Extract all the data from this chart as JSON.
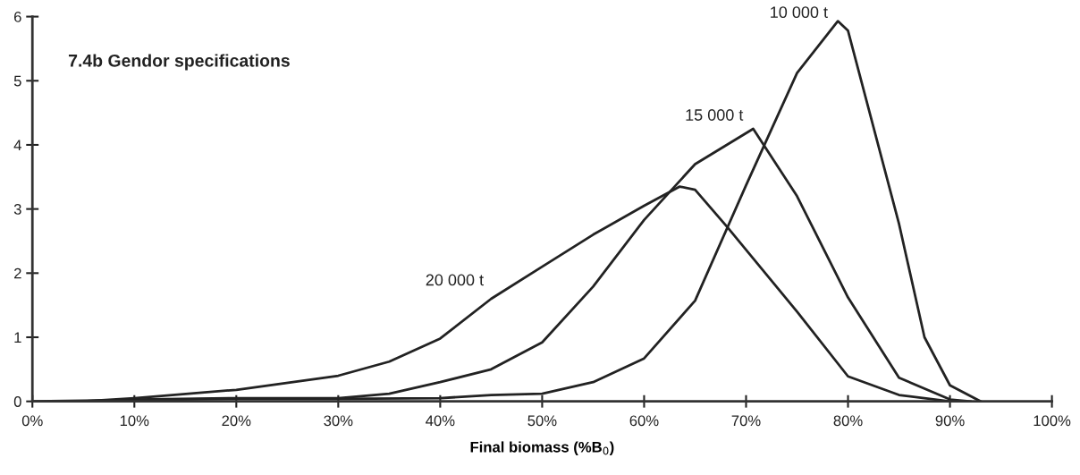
{
  "chart_data": {
    "type": "line",
    "title": "7.4b Gendor specifications",
    "xlabel": "Final biomass (%B$_{0}$)",
    "series": [
      {
        "name": "10 000 t",
        "color": "#222222",
        "x": [
          0,
          10,
          20,
          30,
          40,
          45,
          50,
          55,
          60,
          65,
          70,
          75,
          79,
          80,
          85,
          87.5,
          90,
          93
        ],
        "values": [
          0,
          0.02,
          0.04,
          0.04,
          0.05,
          0.1,
          0.12,
          0.3,
          0.67,
          1.57,
          3.37,
          5.12,
          5.93,
          5.78,
          2.77,
          1.0,
          0.25,
          0
        ]
      },
      {
        "name": "15 000 t",
        "color": "#222222",
        "x": [
          10,
          20,
          30,
          35,
          40,
          45,
          50,
          55,
          60,
          65,
          70.7,
          75,
          80,
          85,
          90,
          92
        ],
        "values": [
          0.03,
          0.05,
          0.05,
          0.12,
          0.3,
          0.5,
          0.92,
          1.79,
          2.83,
          3.7,
          4.25,
          3.2,
          1.62,
          0.37,
          0.03,
          0
        ]
      },
      {
        "name": "20 000 t",
        "color": "#222222",
        "x": [
          5,
          10,
          20,
          30,
          35,
          40,
          45,
          50,
          55,
          60,
          63.5,
          65,
          68.2,
          75,
          80,
          85,
          90
        ],
        "values": [
          0,
          0.05,
          0.18,
          0.4,
          0.62,
          0.98,
          1.6,
          2.1,
          2.6,
          3.05,
          3.35,
          3.3,
          2.71,
          1.4,
          0.39,
          0.1,
          0
        ]
      }
    ],
    "xlim": [
      0,
      100
    ],
    "ylim": [
      0,
      6
    ],
    "xticks": [
      {
        "value": 0,
        "label": "0%"
      },
      {
        "value": 10,
        "label": "10%"
      },
      {
        "value": 20,
        "label": "20%"
      },
      {
        "value": 30,
        "label": "30%"
      },
      {
        "value": 40,
        "label": "40%"
      },
      {
        "value": 50,
        "label": "50%"
      },
      {
        "value": 60,
        "label": "60%"
      },
      {
        "value": 70,
        "label": "70%"
      },
      {
        "value": 80,
        "label": "80%"
      },
      {
        "value": 90,
        "label": "90%"
      },
      {
        "value": 100,
        "label": "100%"
      }
    ],
    "yticks": [
      0,
      1,
      2,
      3,
      4,
      5,
      6
    ],
    "grid": false,
    "legend": false,
    "marker": "none",
    "line_style": "solid"
  }
}
